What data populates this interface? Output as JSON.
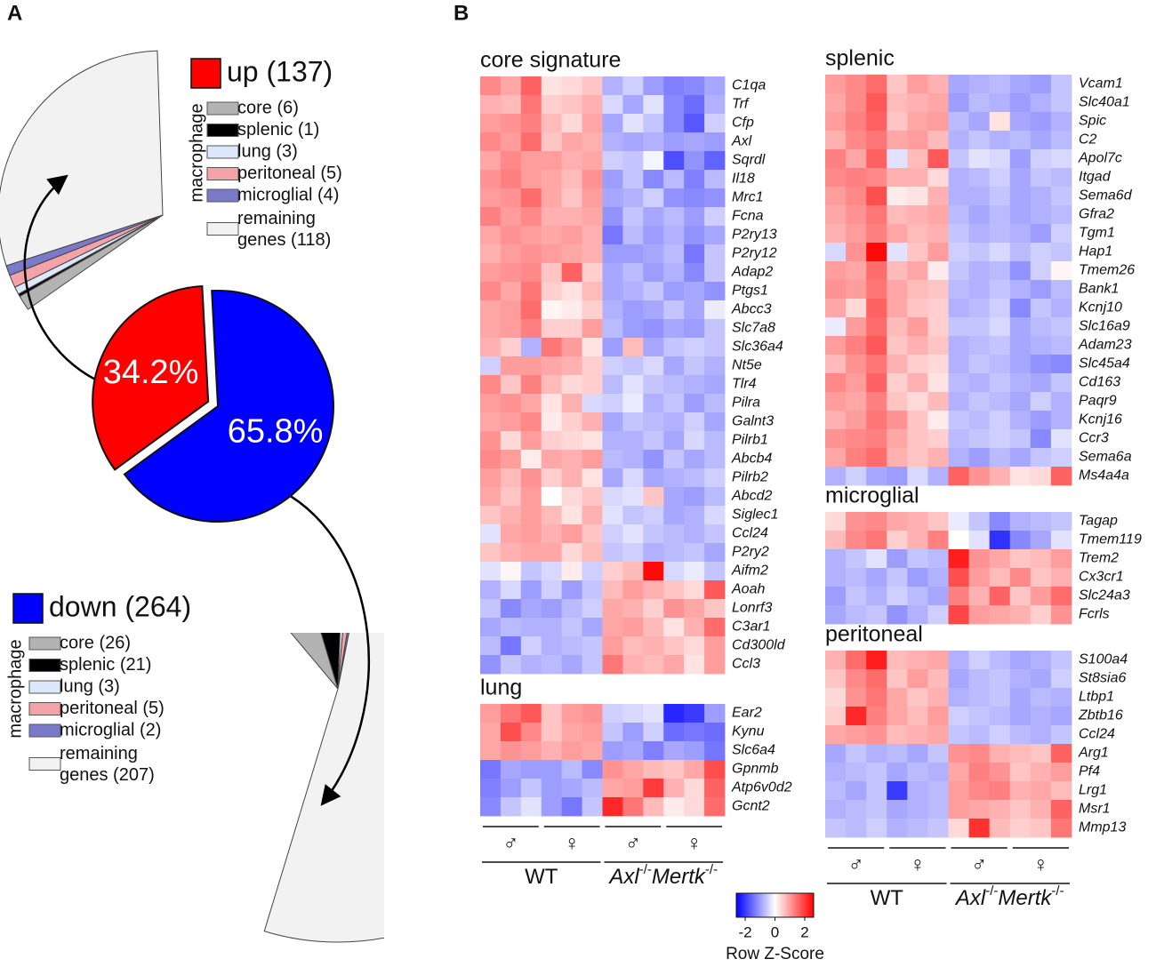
{
  "panel_labels": [
    "A",
    "B"
  ],
  "chart_data": [
    {
      "type": "pie",
      "categories": [
        "up (137)",
        "down (264)"
      ],
      "values": [
        34.2,
        65.8
      ],
      "value_labels": [
        "34.2%",
        "65.8%"
      ],
      "colors": [
        "#ff0000",
        "#0000ff"
      ]
    },
    {
      "type": "fan",
      "group_label": "macrophage",
      "categories": [
        "core (6)",
        "splenic (1)",
        "lung (3)",
        "peritoneal (5)",
        "microglial (4)",
        "remaining genes (118)"
      ],
      "values": [
        6,
        1,
        3,
        5,
        4,
        118
      ],
      "colors": [
        "#b3b3b3",
        "#000000",
        "#dce8fa",
        "#f4a4a8",
        "#7a7ac8",
        "#f2f2f2"
      ]
    },
    {
      "type": "fan",
      "group_label": "macrophage",
      "categories": [
        "core (26)",
        "splenic (21)",
        "lung (3)",
        "peritoneal (5)",
        "microglial (2)",
        "remaining genes (207)"
      ],
      "values": [
        26,
        21,
        3,
        5,
        2,
        207
      ],
      "colors": [
        "#b3b3b3",
        "#000000",
        "#dce8fa",
        "#f4a4a8",
        "#7a7ac8",
        "#f2f2f2"
      ]
    },
    {
      "type": "heatmap",
      "title": "core signature",
      "rows": [
        "C1qa",
        "Trf",
        "Cfp",
        "Axl",
        "Sqrdl",
        "Il18",
        "Mrc1",
        "Fcna",
        "P2ry13",
        "P2ry12",
        "Adap2",
        "Ptgs1",
        "Abcc3",
        "Slc7a8",
        "Slc36a4",
        "Nt5e",
        "Tlr4",
        "Pilra",
        "Galnt3",
        "Pilrb1",
        "Abcb4",
        "Pilrb2",
        "Abcd2",
        "Siglec1",
        "Ccl24",
        "P2ry2",
        "Aifm2",
        "Aoah",
        "Lonrf3",
        "C3ar1",
        "Cd300ld",
        "Ccl3"
      ],
      "values": [
        [
          1.2,
          0.9,
          1.6,
          0.3,
          0.4,
          0.6,
          -0.8,
          -0.5,
          -1.0,
          -1.3,
          -1.2,
          -0.9
        ],
        [
          0.8,
          0.7,
          1.4,
          0.5,
          0.6,
          0.8,
          -0.4,
          -0.9,
          -0.3,
          -1.2,
          -1.5,
          -0.8
        ],
        [
          1.0,
          1.1,
          1.3,
          0.7,
          0.4,
          0.9,
          -0.9,
          -0.3,
          -0.6,
          -1.2,
          -1.7,
          -0.5
        ],
        [
          1.2,
          1.0,
          1.5,
          0.6,
          0.9,
          0.8,
          -0.8,
          -0.9,
          -0.8,
          -1.0,
          -0.9,
          -1.0
        ],
        [
          0.9,
          1.2,
          1.0,
          1.0,
          0.8,
          0.9,
          -0.5,
          -0.6,
          -0.1,
          -1.8,
          -1.1,
          -1.6
        ],
        [
          1.1,
          1.3,
          1.0,
          0.9,
          0.7,
          1.1,
          -1.0,
          -0.6,
          -1.2,
          -0.7,
          -1.3,
          -0.7
        ],
        [
          1.0,
          1.1,
          1.5,
          0.9,
          0.6,
          1.0,
          -0.9,
          -0.8,
          -0.5,
          -1.1,
          -1.2,
          -1.1
        ],
        [
          1.3,
          1.0,
          1.2,
          0.8,
          0.8,
          0.9,
          -1.1,
          -0.6,
          -0.9,
          -0.7,
          -1.0,
          -0.5
        ],
        [
          0.9,
          1.1,
          1.0,
          0.9,
          1.0,
          0.8,
          -1.4,
          -0.7,
          -1.0,
          -0.8,
          -1.1,
          -0.9
        ],
        [
          0.8,
          1.0,
          1.1,
          1.0,
          0.9,
          0.8,
          -1.0,
          -1.0,
          -0.9,
          -0.7,
          -1.4,
          -0.6
        ],
        [
          1.0,
          1.1,
          1.2,
          0.6,
          1.6,
          0.5,
          -0.9,
          -0.7,
          -1.0,
          -0.8,
          -1.2,
          -0.6
        ],
        [
          1.2,
          0.9,
          1.4,
          0.5,
          0.3,
          0.7,
          -0.9,
          -0.8,
          -0.6,
          -1.0,
          -0.9,
          -1.1
        ],
        [
          0.9,
          1.0,
          1.5,
          0.1,
          0.2,
          0.5,
          -0.8,
          -1.0,
          -0.9,
          -0.6,
          -0.9,
          -0.2
        ],
        [
          0.9,
          1.0,
          1.3,
          0.5,
          0.5,
          1.0,
          -0.7,
          -1.0,
          -1.1,
          -0.9,
          -1.0,
          -0.6
        ],
        [
          0.8,
          0.5,
          -0.8,
          1.4,
          1.0,
          0.3,
          -1.0,
          0.7,
          -0.9,
          -0.6,
          -0.5,
          -0.6
        ],
        [
          -0.5,
          1.0,
          1.0,
          0.9,
          0.8,
          0.5,
          -0.5,
          -0.6,
          -0.4,
          -0.9,
          -0.6,
          -0.8
        ],
        [
          1.2,
          0.6,
          1.3,
          0.7,
          0.4,
          0.5,
          -0.7,
          -0.3,
          -0.6,
          -0.7,
          -0.8,
          -0.9
        ],
        [
          1.0,
          1.1,
          0.9,
          0.3,
          0.8,
          -0.4,
          -0.5,
          -0.2,
          -0.8,
          -0.6,
          -1.0,
          -0.7
        ],
        [
          0.9,
          1.0,
          1.2,
          0.2,
          0.5,
          0.8,
          -0.9,
          -0.6,
          -0.7,
          -0.8,
          -0.5,
          -0.9
        ],
        [
          1.1,
          0.4,
          1.0,
          0.5,
          0.4,
          0.3,
          -0.8,
          -0.8,
          -0.6,
          -0.9,
          -0.4,
          -0.7
        ],
        [
          1.2,
          1.0,
          0.2,
          0.9,
          0.8,
          1.0,
          -0.7,
          -0.8,
          -1.1,
          -0.6,
          -0.9,
          -0.7
        ],
        [
          1.0,
          0.7,
          1.1,
          0.5,
          0.8,
          0.3,
          -0.9,
          -0.4,
          -0.9,
          -0.8,
          -0.7,
          -0.5
        ],
        [
          0.9,
          0.6,
          1.0,
          0.0,
          0.4,
          0.6,
          -0.4,
          -0.3,
          0.6,
          -0.9,
          -1.0,
          -0.7
        ],
        [
          0.6,
          0.8,
          1.0,
          0.7,
          0.3,
          0.8,
          -0.3,
          -0.6,
          -0.5,
          -0.9,
          -0.8,
          -0.4
        ],
        [
          -0.3,
          0.9,
          1.0,
          0.8,
          1.0,
          0.6,
          -0.5,
          -0.3,
          -0.6,
          -0.7,
          -0.8,
          -0.6
        ],
        [
          0.6,
          0.8,
          0.9,
          0.9,
          0.4,
          0.7,
          -0.6,
          -0.5,
          -0.8,
          -0.7,
          -0.6,
          -0.9
        ],
        [
          -0.3,
          0.1,
          -0.6,
          -0.4,
          0.2,
          -0.5,
          0.5,
          0.7,
          2.5,
          -0.4,
          -0.2,
          -0.6
        ],
        [
          -0.8,
          -0.4,
          -1.0,
          -0.5,
          -1.0,
          -0.6,
          0.7,
          1.0,
          0.8,
          0.6,
          0.4,
          1.7
        ],
        [
          -0.6,
          -1.2,
          -0.9,
          -1.0,
          -0.7,
          -0.5,
          0.9,
          0.8,
          0.5,
          1.1,
          0.9,
          0.6
        ],
        [
          -0.9,
          -0.7,
          -0.8,
          -0.8,
          -0.6,
          -0.9,
          0.9,
          1.0,
          0.7,
          0.3,
          0.8,
          1.5
        ],
        [
          -0.7,
          -1.4,
          -0.5,
          -0.8,
          -0.7,
          -0.6,
          1.0,
          0.7,
          0.8,
          0.6,
          0.4,
          1.0
        ],
        [
          -1.1,
          -0.6,
          -0.8,
          -0.7,
          -0.9,
          -0.6,
          1.4,
          0.8,
          0.7,
          0.9,
          0.3,
          1.0
        ]
      ]
    },
    {
      "type": "heatmap",
      "title": "lung",
      "rows": [
        "Ear2",
        "Kynu",
        "Slc6a4",
        "Gpnmb",
        "Atp6v0d2",
        "Gcnt2"
      ],
      "values": [
        [
          1.0,
          1.4,
          1.7,
          0.6,
          1.0,
          1.1,
          -0.5,
          -0.4,
          -0.3,
          -2.2,
          -2.0,
          -1.0
        ],
        [
          0.9,
          1.8,
          1.2,
          0.6,
          0.9,
          1.0,
          -0.6,
          -1.0,
          -0.5,
          -1.5,
          -1.4,
          -1.5
        ],
        [
          0.9,
          1.1,
          1.0,
          0.8,
          1.0,
          0.9,
          -1.0,
          -0.9,
          -1.3,
          -0.9,
          -1.0,
          -1.4
        ],
        [
          -1.4,
          -0.9,
          -1.0,
          -1.0,
          -0.7,
          -1.2,
          1.1,
          0.9,
          0.7,
          0.6,
          0.9,
          1.8
        ],
        [
          -1.3,
          -1.0,
          -0.6,
          -1.0,
          -0.9,
          -0.7,
          0.9,
          1.0,
          2.0,
          0.8,
          0.4,
          1.6
        ],
        [
          -1.2,
          -0.6,
          -0.3,
          -1.0,
          -1.4,
          -0.6,
          2.2,
          1.4,
          0.7,
          0.2,
          0.4,
          1.5
        ]
      ]
    },
    {
      "type": "heatmap",
      "title": "splenic",
      "rows": [
        "Vcam1",
        "Slc40a1",
        "Spic",
        "C2",
        "Apol7c",
        "Itgad",
        "Sema6d",
        "Gfra2",
        "Tgm1",
        "Hap1",
        "Tmem26",
        "Bank1",
        "Kcnj10",
        "Slc16a9",
        "Adam23",
        "Slc45a4",
        "Cd163",
        "Paqr9",
        "Kcnj16",
        "Ccr3",
        "Sema6a",
        "Ms4a4a"
      ],
      "values": [
        [
          1.0,
          1.2,
          1.5,
          0.6,
          1.0,
          0.8,
          -0.9,
          -0.8,
          -0.7,
          -0.9,
          -1.0,
          -0.6
        ],
        [
          0.9,
          1.2,
          1.7,
          0.7,
          0.8,
          0.9,
          -1.0,
          -0.7,
          -0.8,
          -1.0,
          -0.8,
          -0.6
        ],
        [
          1.0,
          1.3,
          1.6,
          0.6,
          0.9,
          1.0,
          -0.7,
          -0.9,
          0.3,
          -0.9,
          -1.0,
          -0.8
        ],
        [
          0.8,
          1.2,
          1.4,
          0.9,
          1.0,
          0.7,
          -0.8,
          -0.6,
          -0.8,
          -0.7,
          -0.9,
          -0.7
        ],
        [
          1.3,
          0.9,
          1.6,
          -0.3,
          0.7,
          1.7,
          -0.6,
          -0.3,
          -0.4,
          -1.0,
          -0.5,
          -0.4
        ],
        [
          1.2,
          1.3,
          1.2,
          0.8,
          0.8,
          0.4,
          -0.8,
          -0.7,
          -0.5,
          -0.9,
          -0.6,
          -0.7
        ],
        [
          1.0,
          1.2,
          1.8,
          0.2,
          0.3,
          0.8,
          -0.8,
          -0.8,
          -0.6,
          -0.9,
          -0.8,
          -0.6
        ],
        [
          0.9,
          1.1,
          1.4,
          0.7,
          0.8,
          0.9,
          -0.7,
          -0.9,
          -0.7,
          -0.9,
          -0.8,
          -0.7
        ],
        [
          0.8,
          1.0,
          1.3,
          0.9,
          0.7,
          0.8,
          -0.6,
          -0.8,
          -0.7,
          -0.8,
          -1.0,
          -0.5
        ],
        [
          -0.4,
          1.1,
          2.5,
          -0.3,
          0.6,
          1.0,
          -0.5,
          -0.6,
          -0.4,
          -0.7,
          -0.5,
          -0.6
        ],
        [
          1.0,
          0.9,
          1.5,
          0.7,
          0.9,
          0.2,
          -0.6,
          -0.8,
          -0.7,
          -1.1,
          -0.5,
          0.1
        ],
        [
          1.1,
          1.0,
          1.4,
          0.9,
          0.7,
          0.6,
          -0.7,
          -0.8,
          -0.6,
          -0.8,
          -1.0,
          -0.7
        ],
        [
          0.9,
          0.4,
          1.6,
          0.9,
          0.6,
          0.5,
          -0.8,
          -0.7,
          -0.5,
          -1.2,
          -0.6,
          -0.8
        ],
        [
          -0.2,
          1.0,
          1.5,
          0.7,
          1.0,
          0.5,
          -0.6,
          -0.6,
          -0.4,
          -0.9,
          -0.7,
          -0.6
        ],
        [
          1.0,
          1.3,
          1.7,
          0.6,
          0.8,
          0.6,
          -0.8,
          -0.7,
          -0.6,
          -0.9,
          -0.8,
          -0.7
        ],
        [
          0.7,
          1.1,
          1.4,
          0.8,
          0.5,
          0.4,
          -0.8,
          -0.6,
          -0.7,
          -0.9,
          -1.1,
          -1.2
        ],
        [
          1.2,
          1.0,
          1.6,
          0.5,
          0.8,
          0.3,
          -0.7,
          -0.8,
          -0.6,
          -0.8,
          -0.9,
          -0.6
        ],
        [
          1.0,
          0.9,
          1.3,
          0.6,
          0.4,
          0.7,
          -0.8,
          -0.6,
          -0.7,
          -0.9,
          -0.5,
          -0.8
        ],
        [
          0.8,
          1.0,
          1.4,
          1.1,
          0.6,
          0.2,
          -0.6,
          -0.7,
          -0.5,
          -0.8,
          -1.0,
          -0.8
        ],
        [
          1.1,
          1.2,
          1.3,
          0.9,
          0.6,
          0.5,
          -0.7,
          -0.6,
          -0.5,
          -0.6,
          -1.2,
          -0.3
        ],
        [
          0.9,
          1.3,
          1.5,
          0.8,
          0.6,
          0.8,
          -0.8,
          -1.0,
          -0.7,
          -0.9,
          -0.6,
          -0.5
        ],
        [
          -0.8,
          -0.5,
          -0.9,
          -1.0,
          -0.4,
          -0.8,
          1.6,
          1.1,
          0.8,
          0.3,
          0.4,
          1.6
        ]
      ]
    },
    {
      "type": "heatmap",
      "title": "microglial",
      "rows": [
        "Tagap",
        "Tmem119",
        "Trem2",
        "Cx3cr1",
        "Slc24a3",
        "Fcrls"
      ],
      "values": [
        [
          0.4,
          1.1,
          1.2,
          0.9,
          0.8,
          0.6,
          -0.2,
          -0.6,
          -1.2,
          -0.8,
          -0.7,
          -0.6
        ],
        [
          0.7,
          1.2,
          1.4,
          0.5,
          0.8,
          1.3,
          0.0,
          -0.3,
          -2.1,
          -1.2,
          -0.9,
          -0.3
        ],
        [
          -0.8,
          -0.6,
          -0.3,
          -1.0,
          -0.6,
          -0.7,
          2.3,
          1.1,
          0.9,
          0.6,
          0.7,
          1.0
        ],
        [
          -0.8,
          -0.7,
          -0.9,
          -0.6,
          -1.0,
          -0.8,
          1.8,
          1.0,
          0.7,
          1.2,
          0.6,
          0.8
        ],
        [
          -1.0,
          -0.6,
          -0.8,
          -0.5,
          -0.7,
          -0.9,
          1.3,
          0.8,
          1.6,
          0.6,
          1.0,
          1.5
        ],
        [
          -0.9,
          -0.7,
          -0.6,
          -1.1,
          -0.8,
          -0.5,
          1.9,
          1.0,
          0.9,
          0.8,
          0.5,
          1.1
        ]
      ]
    },
    {
      "type": "heatmap",
      "title": "peritoneal",
      "rows": [
        "S100a4",
        "St8sia6",
        "Ltbp1",
        "Zbtb16",
        "Ccl24",
        "Arg1",
        "Pf4",
        "Lrg1",
        "Msr1",
        "Mmp13"
      ],
      "values": [
        [
          0.8,
          1.5,
          2.3,
          0.7,
          0.8,
          0.9,
          -0.8,
          -0.5,
          -0.7,
          -0.9,
          -0.8,
          -0.6
        ],
        [
          0.6,
          1.2,
          1.5,
          0.6,
          1.0,
          0.7,
          -0.9,
          -0.7,
          -0.6,
          -0.8,
          -0.9,
          -0.5
        ],
        [
          0.4,
          1.1,
          1.4,
          0.9,
          0.6,
          0.8,
          -0.8,
          -0.7,
          -0.6,
          -0.9,
          -0.7,
          -0.8
        ],
        [
          0.5,
          2.2,
          1.3,
          0.9,
          0.7,
          1.0,
          -0.5,
          -0.6,
          -0.7,
          -0.9,
          -0.8,
          -0.9
        ],
        [
          0.9,
          1.0,
          1.1,
          0.7,
          0.8,
          0.9,
          -0.6,
          -0.7,
          -0.5,
          -0.7,
          -0.8,
          -0.6
        ],
        [
          -0.9,
          -0.6,
          -0.8,
          -0.7,
          -0.9,
          -0.6,
          1.1,
          1.2,
          0.8,
          0.7,
          0.6,
          1.6
        ],
        [
          -0.8,
          -0.7,
          -0.6,
          -0.9,
          -0.7,
          -0.8,
          0.9,
          1.3,
          1.1,
          0.6,
          0.8,
          1.0
        ],
        [
          -0.7,
          -0.9,
          -0.6,
          -2.0,
          -0.8,
          -0.7,
          1.0,
          1.2,
          1.3,
          0.8,
          0.9,
          0.7
        ],
        [
          -0.8,
          -0.7,
          -0.6,
          -0.9,
          -0.8,
          -0.7,
          1.0,
          0.9,
          0.8,
          0.6,
          0.8,
          1.6
        ],
        [
          -0.6,
          -0.7,
          -0.5,
          -0.8,
          -0.7,
          -0.6,
          0.4,
          2.1,
          0.7,
          0.5,
          0.6,
          1.4
        ]
      ]
    }
  ],
  "column_labels": {
    "sex": [
      "♂",
      "♀",
      "♂",
      "♀"
    ],
    "genotypes": [
      [
        "WT"
      ],
      [
        "Axl",
        "-/-",
        "Mertk",
        "-/-"
      ]
    ]
  },
  "colorbar": {
    "label": "Row Z-Score",
    "zlim": [
      -2.6,
      2.6
    ],
    "zticks": [
      -2,
      0,
      2
    ]
  }
}
